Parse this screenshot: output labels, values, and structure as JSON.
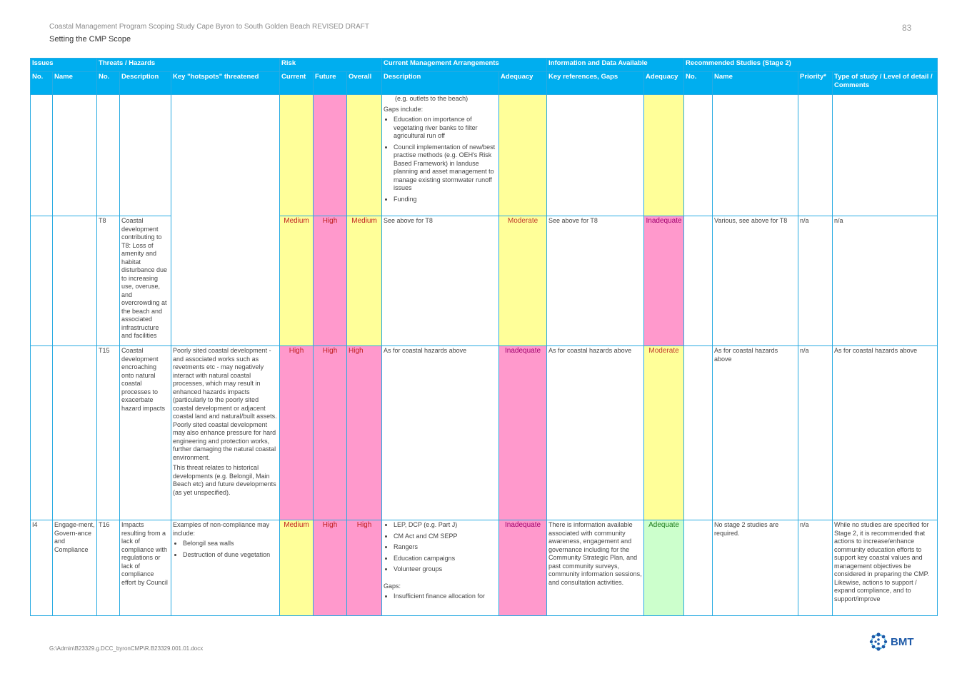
{
  "header": {
    "title": "Coastal Management Program Scoping Study Cape Byron to South Golden Beach REVISED DRAFT",
    "subtitle": "Setting the CMP Scope",
    "page_number": "83"
  },
  "table": {
    "group_headers": [
      "Issues",
      "Threats / Hazards",
      "Risk",
      "Current Management Arrangements",
      "Information and Data Available",
      "Recommended Studies (Stage 2)"
    ],
    "column_headers": [
      "No.",
      "Name",
      "No.",
      "Description",
      "Key \"hotspots\" threatened",
      "Current",
      "Future",
      "Overall",
      "Description",
      "Adequacy",
      "Key references, Gaps",
      "Adequacy",
      "No.",
      "Name",
      "Priority*",
      "Type of study / Level of detail / Comments"
    ],
    "row1": {
      "mgmt_cont": "(e.g. outlets to the beach)",
      "gaps_label": "Gaps include:",
      "gaps": [
        "Education on importance of vegetating river banks to filter agricultural run off",
        "Council implementation of new/best practise methods (e.g. OEH's Risk Based Framework) in landuse planning and asset management to manage existing stormwater runoff issues",
        "Funding"
      ]
    },
    "row2": {
      "threat_no": "T8",
      "threat_desc": "Coastal development contributing to T8: Loss of amenity and habitat disturbance due to increasing use, overuse, and overcrowding at the beach and associated infrastructure and facilities",
      "current": "Medium",
      "future": "High",
      "overall": "Medium",
      "mgmt_desc": "See above for T8",
      "mgmt_adequacy": "Moderate",
      "info_refs": "See above for T8",
      "info_adequacy": "Inadequate",
      "study_name": "Various, see above for T8",
      "priority": "n/a",
      "type": "n/a"
    },
    "row3": {
      "threat_no": "T15",
      "threat_desc": "Coastal development encroaching onto natural coastal processes to exacerbate hazard impacts",
      "hotspots_p1": "Poorly sited coastal development - and associated works such as revetments etc - may negatively interact with natural coastal processes, which may result in enhanced hazards impacts (particularly to the poorly sited coastal development or adjacent coastal land and natural/built assets. Poorly sited coastal development may also enhance pressure for hard engineering and protection works, further damaging the natural coastal environment.",
      "hotspots_p2": "This threat relates to historical developments (e.g. Belongil, Main Beach etc) and future developments (as yet unspecified).",
      "current": "High",
      "future": "High",
      "overall": "High",
      "mgmt_desc": "As for coastal hazards above",
      "mgmt_adequacy": "Inadequate",
      "info_refs": "As for coastal hazards above",
      "info_adequacy": "Moderate",
      "study_name": "As for coastal hazards above",
      "priority": "n/a",
      "type": "As for coastal hazards above"
    },
    "row4": {
      "issue_no": "I4",
      "issue_name": "Engage-ment, Govern-ance and Compliance",
      "threat_no": "T16",
      "threat_desc": "Impacts resulting from a lack of compliance with regulations or lack of compliance effort by Council",
      "hotspots_intro": "Examples of non-compliance may include:",
      "hotspots_list": [
        "Belongil sea walls",
        "Destruction of dune vegetation"
      ],
      "current": "Medium",
      "future": "High",
      "overall": "High",
      "mgmt_list": [
        "LEP, DCP (e.g. Part J)",
        "CM Act and CM SEPP",
        "Rangers",
        "Education campaigns",
        "Volunteer groups"
      ],
      "mgmt_gaps_label": "Gaps:",
      "mgmt_gaps": [
        "Insufficient finance allocation for"
      ],
      "mgmt_adequacy": "Inadequate",
      "info_refs": "There is information available associated with community awareness, engagement and governance including for the Community Strategic Plan, and past community surveys, community information sessions, and consultation activities.",
      "info_adequacy": "Adequate",
      "study_name": "No stage 2 studies are required.",
      "priority": "n/a",
      "type": "While no studies are specified for Stage 2, it is recommended that actions to increase/enhance community education efforts to support key coastal values and management objectives be considered in preparing the CMP. Likewise, actions to support / expand compliance, and to support/improve"
    }
  },
  "footer": {
    "path": "G:\\Admin\\B23329.g.DCC_byronCMP\\R.B23329.001.01.docx",
    "logo_text": "BMT",
    "logo_icon": "bmt-logo-icon"
  }
}
